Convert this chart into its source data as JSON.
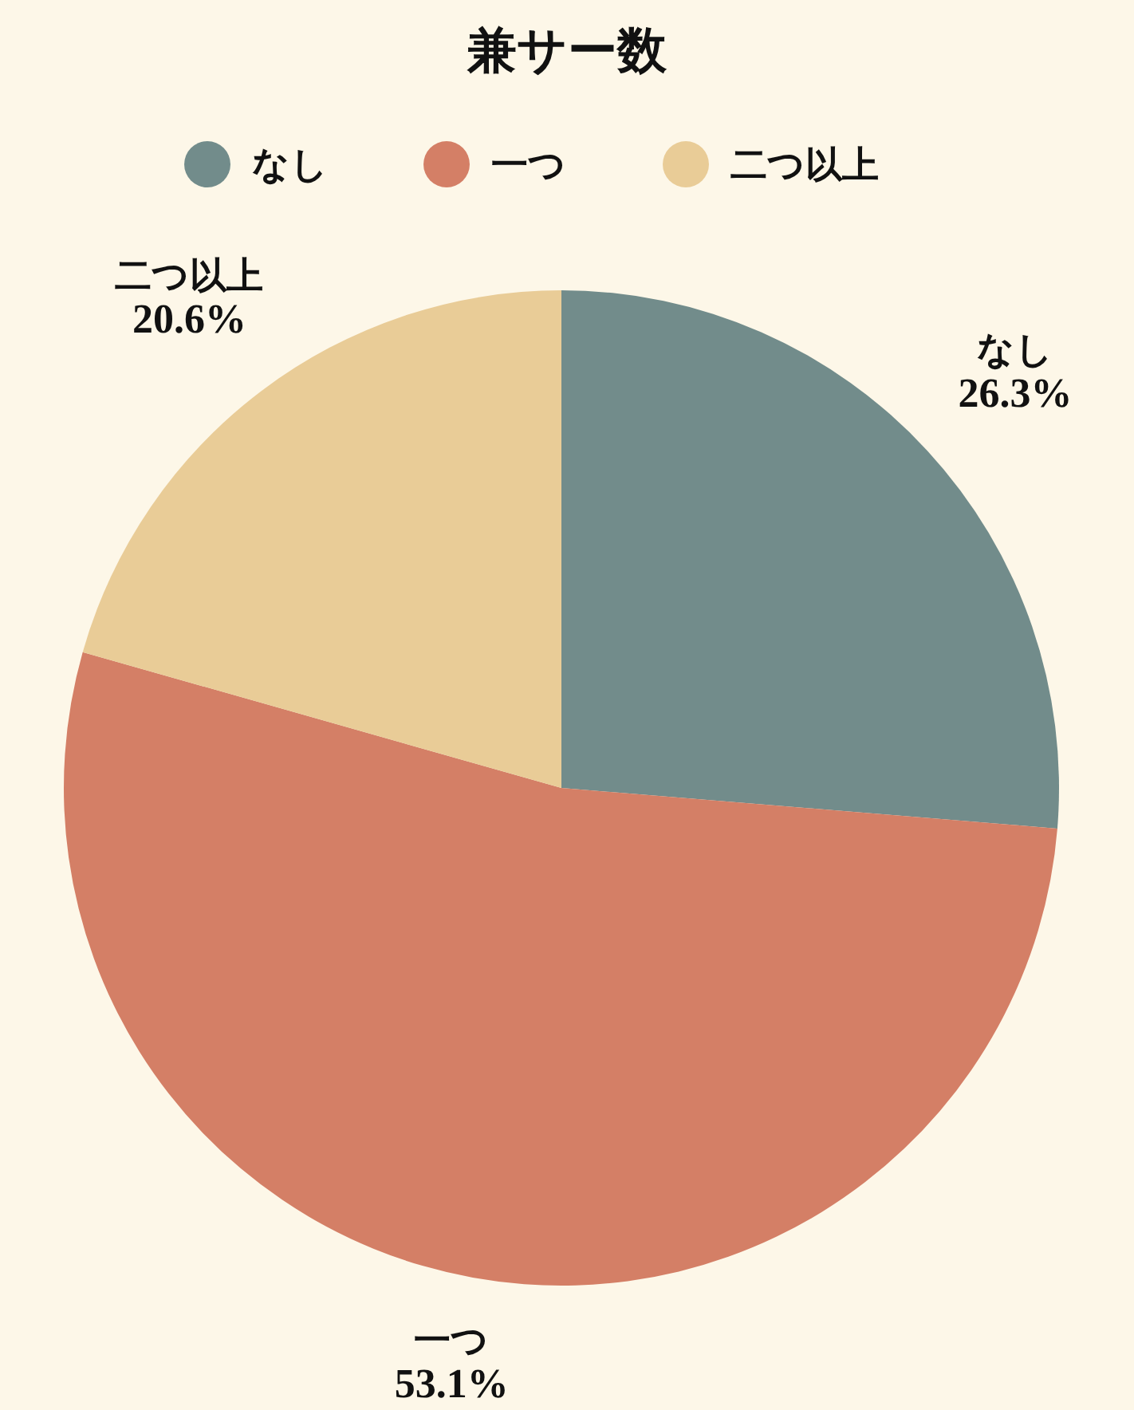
{
  "chart_data": {
    "type": "pie",
    "title": "兼サー数",
    "categories": [
      "なし",
      "一つ",
      "二つ以上"
    ],
    "values": [
      26.3,
      53.1,
      20.6
    ],
    "colors": [
      "#728c8b",
      "#d47f66",
      "#e9cc97"
    ],
    "value_labels": [
      "26.3%",
      "53.1%",
      "20.6%"
    ],
    "legend": "top"
  }
}
